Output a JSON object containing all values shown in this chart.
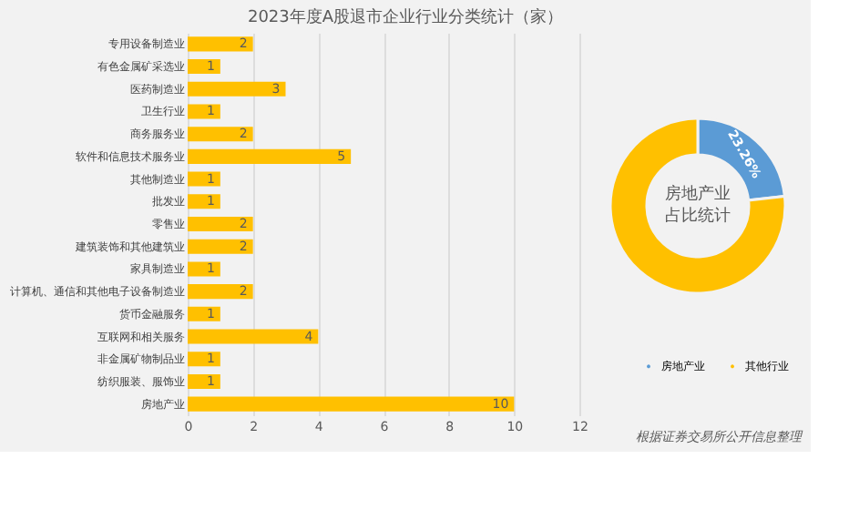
{
  "chart_data": [
    {
      "type": "bar",
      "orientation": "horizontal",
      "title": "2023年度A股退市企业行业分类统计（家）",
      "categories": [
        "专用设备制造业",
        "有色金属矿采选业",
        "医药制造业",
        "卫生行业",
        "商务服务业",
        "软件和信息技术服务业",
        "其他制造业",
        "批发业",
        "零售业",
        "建筑装饰和其他建筑业",
        "家具制造业",
        "计算机、通信和其他电子设备制造业",
        "货币金融服务",
        "互联网和相关服务",
        "非金属矿物制品业",
        "纺织服装、服饰业",
        "房地产业"
      ],
      "values": [
        2,
        1,
        3,
        1,
        2,
        5,
        1,
        1,
        2,
        2,
        1,
        2,
        1,
        4,
        1,
        1,
        10
      ],
      "color": "#ffc000",
      "xlim": [
        0,
        12
      ],
      "xticks": [
        0,
        2,
        4,
        6,
        8,
        10,
        12
      ],
      "grid": "x",
      "data_labels": true
    },
    {
      "type": "donut",
      "categories": [
        "房地产业",
        "其他行业"
      ],
      "values": [
        23.26,
        76.74
      ],
      "colors": [
        "#5b9bd5",
        "#ffc000"
      ],
      "value_labels": [
        "23.26%",
        null
      ],
      "legend": "bottom",
      "annotations": [
        "房地产业",
        "占比统计",
        "根据证券交易所公开信息整理"
      ]
    }
  ]
}
